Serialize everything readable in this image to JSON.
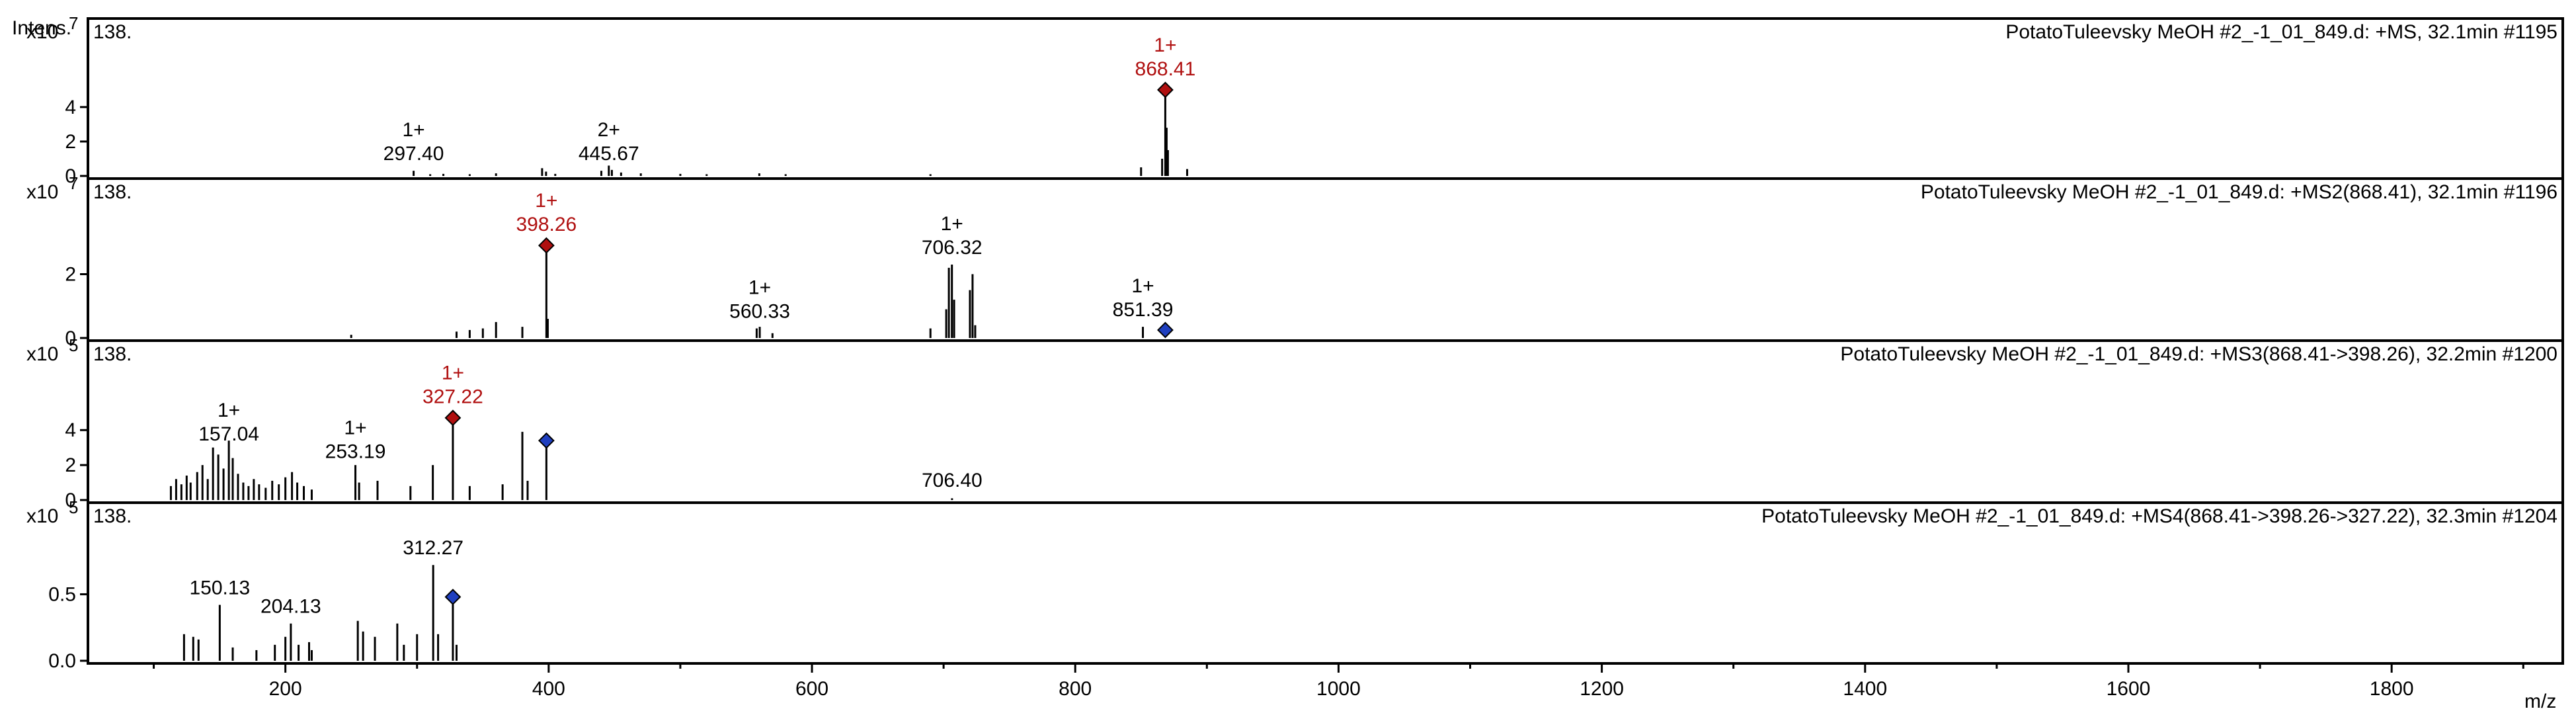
{
  "chart_data": {
    "type": "mass-spectrum",
    "y_axis_title": "Intens.",
    "xlabel": "m/z",
    "x_ticks": [
      "200",
      "400",
      "600",
      "800",
      "1000",
      "1200",
      "1400",
      "1600",
      "1800"
    ],
    "xlim": [
      50,
      1930
    ],
    "colors": {
      "selected": "#b01010",
      "precursor_marker": "#1f3fbf",
      "peaks": "#000000"
    },
    "panels": [
      {
        "id": "ms1",
        "header": "PotatoTuleevsky MeOH #2_-1_01_849.d: +MS, 32.1min #1195",
        "corner_label": "138.",
        "exponent_label": "x10",
        "exponent_power": "7",
        "yticks": [
          "0",
          "2",
          "4"
        ],
        "ytick_values": [
          0,
          2,
          4
        ],
        "ylim": [
          0,
          7.3
        ],
        "labels": [
          {
            "charge": "1+",
            "mz": "297.40",
            "x": 297.4,
            "y": 0.3,
            "selected": false
          },
          {
            "charge": "2+",
            "mz": "445.67",
            "x": 445.67,
            "y": 0.3,
            "selected": false
          },
          {
            "charge": "1+",
            "mz": "868.41",
            "x": 868.41,
            "y": 5.0,
            "selected": true
          }
        ],
        "diamonds": [
          {
            "x": 868.41,
            "y": 5.0,
            "color": "red"
          }
        ],
        "peaks": [
          [
            297.4,
            0.3
          ],
          [
            310,
            0.1
          ],
          [
            320,
            0.12
          ],
          [
            340,
            0.1
          ],
          [
            360,
            0.15
          ],
          [
            395,
            0.45
          ],
          [
            398,
            0.25
          ],
          [
            405,
            0.12
          ],
          [
            440,
            0.3
          ],
          [
            445.67,
            0.6
          ],
          [
            448,
            0.35
          ],
          [
            455,
            0.2
          ],
          [
            470,
            0.15
          ],
          [
            500,
            0.12
          ],
          [
            520,
            0.1
          ],
          [
            560,
            0.15
          ],
          [
            580,
            0.1
          ],
          [
            690,
            0.1
          ],
          [
            850,
            0.5
          ],
          [
            866,
            1.0
          ],
          [
            868.41,
            5.0
          ],
          [
            869.4,
            2.8
          ],
          [
            870.4,
            1.5
          ],
          [
            885,
            0.4
          ]
        ]
      },
      {
        "id": "ms2",
        "header": "PotatoTuleevsky MeOH #2_-1_01_849.d: +MS2(868.41), 32.1min #1196",
        "corner_label": "138.",
        "exponent_label": "x10",
        "exponent_power": "7",
        "yticks": [
          "0",
          "2"
        ],
        "ytick_values": [
          0,
          2
        ],
        "ylim": [
          0,
          4.0
        ],
        "labels": [
          {
            "charge": "1+",
            "mz": "398.26",
            "x": 398.26,
            "y": 2.9,
            "selected": true
          },
          {
            "charge": "1+",
            "mz": "560.33",
            "x": 560.33,
            "y": 0.3,
            "selected": false
          },
          {
            "charge": "1+",
            "mz": "706.32",
            "x": 706.32,
            "y": 2.3,
            "selected": false
          },
          {
            "charge": "1+",
            "mz": "851.39",
            "x": 851.39,
            "y": 0.35,
            "selected": false
          }
        ],
        "diamonds": [
          {
            "x": 398.26,
            "y": 2.9,
            "color": "red"
          },
          {
            "x": 868.41,
            "y": 0.25,
            "color": "blue"
          }
        ],
        "peaks": [
          [
            250,
            0.1
          ],
          [
            330,
            0.2
          ],
          [
            340,
            0.25
          ],
          [
            350,
            0.3
          ],
          [
            360,
            0.5
          ],
          [
            380,
            0.35
          ],
          [
            398.26,
            2.9
          ],
          [
            399.3,
            0.6
          ],
          [
            558,
            0.3
          ],
          [
            560.33,
            0.35
          ],
          [
            570,
            0.15
          ],
          [
            690,
            0.3
          ],
          [
            702,
            0.9
          ],
          [
            704,
            2.2
          ],
          [
            706.32,
            2.3
          ],
          [
            708,
            1.2
          ],
          [
            720,
            1.5
          ],
          [
            722,
            2.0
          ],
          [
            724,
            0.4
          ],
          [
            851.39,
            0.35
          ]
        ]
      },
      {
        "id": "ms3",
        "header": "PotatoTuleevsky MeOH #2_-1_01_849.d: +MS3(868.41->398.26), 32.2min #1200",
        "corner_label": "138.",
        "exponent_label": "x10",
        "exponent_power": "5",
        "yticks": [
          "0",
          "2",
          "4"
        ],
        "ytick_values": [
          0,
          2,
          4
        ],
        "ylim": [
          0,
          7.3
        ],
        "labels": [
          {
            "charge": "1+",
            "mz": "157.04",
            "x": 157.04,
            "y": 2.8,
            "selected": false
          },
          {
            "charge": "1+",
            "mz": "253.19",
            "x": 253.19,
            "y": 1.8,
            "selected": false
          },
          {
            "charge": "1+",
            "mz": "327.22",
            "x": 327.22,
            "y": 4.7,
            "selected": true
          },
          {
            "charge": "",
            "mz": "706.40",
            "x": 706.4,
            "y": 0.15,
            "selected": false
          }
        ],
        "diamonds": [
          {
            "x": 327.22,
            "y": 4.7,
            "color": "red"
          },
          {
            "x": 398.26,
            "y": 3.4,
            "color": "blue"
          }
        ],
        "peaks": [
          [
            113,
            0.8
          ],
          [
            117,
            1.2
          ],
          [
            121,
            0.9
          ],
          [
            125,
            1.4
          ],
          [
            128,
            1.0
          ],
          [
            133,
            1.6
          ],
          [
            137,
            2.0
          ],
          [
            141,
            1.2
          ],
          [
            145,
            3.0
          ],
          [
            149,
            2.6
          ],
          [
            153,
            1.8
          ],
          [
            157.04,
            3.4
          ],
          [
            160,
            2.4
          ],
          [
            164,
            1.5
          ],
          [
            168,
            1.0
          ],
          [
            172,
            0.8
          ],
          [
            176,
            1.2
          ],
          [
            180,
            0.9
          ],
          [
            185,
            0.7
          ],
          [
            190,
            1.1
          ],
          [
            195,
            0.9
          ],
          [
            200,
            1.3
          ],
          [
            205,
            1.6
          ],
          [
            209,
            1.0
          ],
          [
            214,
            0.8
          ],
          [
            220,
            0.6
          ],
          [
            253.19,
            2.0
          ],
          [
            256,
            1.0
          ],
          [
            270,
            1.1
          ],
          [
            295,
            0.8
          ],
          [
            312,
            2.0
          ],
          [
            327.22,
            4.7
          ],
          [
            340,
            0.8
          ],
          [
            365,
            0.9
          ],
          [
            380,
            3.9
          ],
          [
            384,
            1.1
          ],
          [
            398.26,
            3.4
          ],
          [
            706.4,
            0.1
          ]
        ]
      },
      {
        "id": "ms4",
        "header": "PotatoTuleevsky MeOH #2_-1_01_849.d: +MS4(868.41->398.26->327.22), 32.3min #1204",
        "corner_label": "138.",
        "exponent_label": "x10",
        "exponent_power": "5",
        "yticks": [
          "0.0",
          "0.5"
        ],
        "ytick_values": [
          0,
          0.5
        ],
        "ylim": [
          0,
          0.95
        ],
        "labels": [
          {
            "charge": "",
            "mz": "150.13",
            "x": 150.13,
            "y": 0.42,
            "selected": false
          },
          {
            "charge": "",
            "mz": "204.13",
            "x": 204.13,
            "y": 0.28,
            "selected": false
          },
          {
            "charge": "",
            "mz": "312.27",
            "x": 312.27,
            "y": 0.72,
            "selected": false
          }
        ],
        "diamonds": [
          {
            "x": 327.22,
            "y": 0.48,
            "color": "blue"
          }
        ],
        "peaks": [
          [
            123,
            0.2
          ],
          [
            130,
            0.18
          ],
          [
            134,
            0.16
          ],
          [
            150.13,
            0.42
          ],
          [
            160,
            0.1
          ],
          [
            178,
            0.08
          ],
          [
            192,
            0.12
          ],
          [
            200,
            0.18
          ],
          [
            204.13,
            0.28
          ],
          [
            210,
            0.12
          ],
          [
            218,
            0.14
          ],
          [
            220,
            0.08
          ],
          [
            255,
            0.3
          ],
          [
            259,
            0.22
          ],
          [
            268,
            0.18
          ],
          [
            285,
            0.28
          ],
          [
            290,
            0.12
          ],
          [
            300,
            0.2
          ],
          [
            312.27,
            0.72
          ],
          [
            316,
            0.2
          ],
          [
            327.22,
            0.45
          ],
          [
            330,
            0.12
          ]
        ]
      }
    ]
  }
}
